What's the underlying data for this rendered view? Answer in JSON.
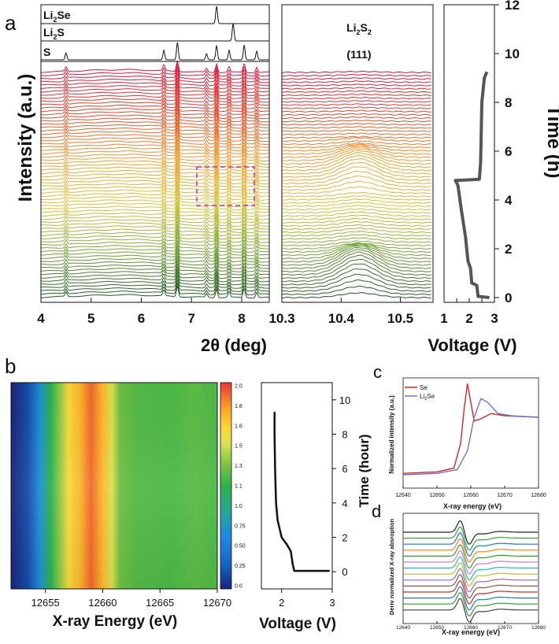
{
  "panel_letters": [
    "a",
    "b",
    "c",
    "d"
  ],
  "chart_data": [
    {
      "id": "a-left",
      "type": "line",
      "description_series_count": 70,
      "xlabel": "2θ (deg)",
      "ylabel": "Intensity (a.u.)",
      "xlim": [
        4,
        8.5
      ],
      "xticks": [
        "4",
        "5",
        "6",
        "7",
        "8"
      ],
      "peaks_2theta": [
        4.5,
        6.45,
        6.72,
        7.3,
        7.5,
        7.75,
        8.05,
        8.3
      ],
      "references": [
        {
          "label": "Li2Se",
          "peaks": [
            7.5
          ]
        },
        {
          "label": "Li2S",
          "peaks": [
            7.83
          ]
        },
        {
          "label": "S",
          "peaks": [
            4.5,
            6.45,
            6.72,
            7.3,
            7.5,
            7.75,
            8.05,
            8.3
          ]
        }
      ],
      "color_gradient": [
        "#1f5a1f",
        "#7aa83a",
        "#d8c43a",
        "#f0a030",
        "#e54b2a",
        "#dc143c"
      ]
    },
    {
      "id": "a-middle",
      "type": "line",
      "title_main": "Li2S2",
      "title_sub": "(111)",
      "xlim": [
        10.3,
        10.55
      ],
      "xticks": [
        "10.3",
        "10.4",
        "10.5"
      ],
      "peak_2theta": 10.43
    },
    {
      "id": "a-right",
      "type": "line",
      "xlabel": "Voltage (V)",
      "ylabel": "Time (h)",
      "xlim": [
        1,
        3
      ],
      "ylim": [
        0,
        12
      ],
      "xticks": [
        "1",
        "1.5",
        "2",
        "2.5",
        "3"
      ],
      "yticks": [
        "0",
        "2",
        "4",
        "6",
        "8",
        "10",
        "12"
      ],
      "points": [
        [
          2.8,
          0.0
        ],
        [
          2.35,
          0.05
        ],
        [
          2.3,
          0.5
        ],
        [
          2.1,
          0.6
        ],
        [
          2.05,
          1.2
        ],
        [
          1.95,
          1.5
        ],
        [
          1.85,
          2.5
        ],
        [
          1.7,
          3.5
        ],
        [
          1.55,
          4.6
        ],
        [
          1.45,
          4.8
        ],
        [
          2.4,
          4.85
        ],
        [
          2.45,
          5.5
        ],
        [
          2.5,
          8.0
        ],
        [
          2.6,
          9.0
        ],
        [
          2.7,
          9.25
        ]
      ]
    },
    {
      "id": "b-map",
      "type": "heatmap",
      "xlabel": "X-ray Energy (eV)",
      "xlim": [
        12652,
        12670
      ],
      "xticks": [
        "12655",
        "12660",
        "12665",
        "12670"
      ],
      "colorbar_ticks": [
        "0.0",
        "0.25",
        "0.50",
        "0.75",
        "1.0",
        "1.1",
        "1.3",
        "1.5",
        "1.6",
        "1.8",
        "2.0"
      ],
      "intensity_profile": [
        [
          12652,
          0.0
        ],
        [
          12653.5,
          0.15
        ],
        [
          12654.5,
          0.5
        ],
        [
          12655.5,
          0.9
        ],
        [
          12656.3,
          1.2
        ],
        [
          12657,
          1.55
        ],
        [
          12658,
          1.75
        ],
        [
          12659,
          1.95
        ],
        [
          12660,
          1.75
        ],
        [
          12660.8,
          1.4
        ],
        [
          12661.5,
          1.1
        ],
        [
          12663,
          1.02
        ],
        [
          12666,
          1.0
        ],
        [
          12668,
          1.05
        ],
        [
          12670,
          1.0
        ]
      ]
    },
    {
      "id": "b-voltage",
      "type": "line",
      "xlabel": "Voltage (V)",
      "ylabel": "Time (hour)",
      "xlim": [
        1.6,
        3.0
      ],
      "ylim": [
        -1,
        11
      ],
      "xticks": [
        "2",
        "3"
      ],
      "yticks": [
        "0",
        "2",
        "4",
        "6",
        "8",
        "10"
      ],
      "points": [
        [
          1.86,
          9.3
        ],
        [
          1.86,
          8.0
        ],
        [
          1.87,
          6.0
        ],
        [
          1.89,
          4.0
        ],
        [
          1.92,
          3.0
        ],
        [
          2.0,
          2.0
        ],
        [
          2.1,
          1.6
        ],
        [
          2.18,
          1.2
        ],
        [
          2.22,
          0.4
        ],
        [
          2.25,
          0.05
        ],
        [
          2.5,
          0.05
        ],
        [
          2.95,
          0.05
        ]
      ]
    },
    {
      "id": "c",
      "type": "line",
      "xlabel": "X-ray energy (eV)",
      "ylabel": "Normalized intensity (a.u.)",
      "xlim": [
        12640,
        12680
      ],
      "xticks": [
        "12640",
        "12650",
        "12660",
        "12670",
        "12680"
      ],
      "series": [
        {
          "name": "Se",
          "color": "#dd2222",
          "points": [
            [
              12640,
              0.05
            ],
            [
              12650,
              0.07
            ],
            [
              12655,
              0.12
            ],
            [
              12657,
              0.45
            ],
            [
              12658,
              0.9
            ],
            [
              12659,
              1.25
            ],
            [
              12660,
              1.0
            ],
            [
              12661,
              0.75
            ],
            [
              12663,
              0.78
            ],
            [
              12666,
              0.85
            ],
            [
              12670,
              0.82
            ],
            [
              12680,
              0.8
            ]
          ]
        },
        {
          "name": "Li2Se",
          "color": "#6677cc",
          "points": [
            [
              12640,
              0.03
            ],
            [
              12650,
              0.05
            ],
            [
              12656,
              0.1
            ],
            [
              12659,
              0.35
            ],
            [
              12661,
              0.8
            ],
            [
              12663,
              1.05
            ],
            [
              12665,
              1.0
            ],
            [
              12668,
              0.85
            ],
            [
              12672,
              0.82
            ],
            [
              12680,
              0.8
            ]
          ]
        }
      ]
    },
    {
      "id": "d",
      "type": "line",
      "xlabel": "X-ray energy (eV)",
      "ylabel": "Deriv normalized X-ray absroption",
      "xlim": [
        12640,
        12680
      ],
      "xticks": [
        "12640",
        "12650",
        "12660",
        "12670",
        "12680"
      ],
      "series_colors": [
        "#222222",
        "#33aa33",
        "#1f77b4",
        "#ff7f0e",
        "#2ca02c",
        "#e377c2",
        "#17becf",
        "#bcbd22",
        "#9467bd",
        "#8c564b",
        "#d62728",
        "#1f77b4",
        "#2ca02c",
        "#444444"
      ],
      "peak_energy": 12657,
      "trough_energy": 12659
    }
  ],
  "labels": {
    "ref_li2se_main": "Li",
    "ref_li2se_sub": "2",
    "ref_li2se_tail": "Se",
    "ref_li2s_main": "Li",
    "ref_li2s_sub": "2",
    "ref_li2s_tail": "S",
    "ref_s": "S",
    "a_xlabel_left": "2θ (deg)",
    "a_xlabel_right": "Voltage (V)",
    "a_ylabel": "Intensity (a.u.)",
    "a_ylabel_right": "Time (h)",
    "a_mid_title_main": "Li",
    "a_mid_title_sub": "2",
    "a_mid_title_mid": "S",
    "a_mid_title_sub2": "2",
    "a_mid_title_sub_line": "(111)",
    "b_xlabel": "X-ray Energy (eV)",
    "b_v_xlabel": "Voltage (V)",
    "b_v_ylabel": "Time (hour)",
    "c_legend_se": "Se",
    "c_legend_li2se_main": "Li",
    "c_legend_li2se_sub": "2",
    "c_legend_li2se_tail": "Se",
    "c_xlabel": "X-ray energy (eV)",
    "c_ylabel": "Normalized intensity (a.u.)",
    "d_xlabel": "X-ray energy (eV)",
    "d_ylabel": "Deriv normalized X-ray absroption"
  }
}
